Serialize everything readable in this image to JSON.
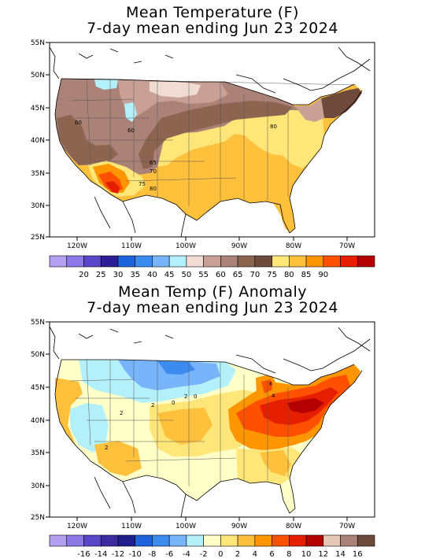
{
  "map1": {
    "title_line1": "Mean Temperature (F)",
    "title_line2": "7-day mean ending Jun 23 2024",
    "lat_labels": [
      "55N",
      "50N",
      "45N",
      "40N",
      "35N",
      "30N",
      "25N"
    ],
    "lon_labels": [
      "120W",
      "110W",
      "100W",
      "90W",
      "80W",
      "70W"
    ],
    "colorbar_values": [
      "20",
      "25",
      "30",
      "35",
      "40",
      "45",
      "50",
      "55",
      "60",
      "65",
      "70",
      "75",
      "80",
      "85",
      "90"
    ],
    "colorbar_colors": [
      "#b4a0f0",
      "#8c78e6",
      "#5a46c8",
      "#2d1e96",
      "#1e64dc",
      "#3c8cf0",
      "#78b4fa",
      "#b4f0fa",
      "#f0dcd2",
      "#c8a096",
      "#aa8278",
      "#8c6450",
      "#6e4a3c",
      "#ffe678",
      "#ffc03c",
      "#ff9600",
      "#ff5000",
      "#e61e00",
      "#b40000"
    ],
    "contour_labels": [
      "60",
      "60",
      "65",
      "70",
      "75",
      "80",
      "80"
    ],
    "projection": "Lambert conformal, CONUS"
  },
  "map2": {
    "title_line1": "Mean Temp (F) Anomaly",
    "title_line2": "7-day mean ending Jun 23 2024",
    "lat_labels": [
      "55N",
      "50N",
      "45N",
      "40N",
      "35N",
      "30N",
      "25N"
    ],
    "lon_labels": [
      "120W",
      "110W",
      "100W",
      "90W",
      "80W",
      "70W"
    ],
    "colorbar_values": [
      "-16",
      "-14",
      "-12",
      "-10",
      "-8",
      "-6",
      "-4",
      "-2",
      "0",
      "2",
      "4",
      "6",
      "8",
      "10",
      "12",
      "14",
      "16"
    ],
    "colorbar_colors": [
      "#b4a0f0",
      "#8c78e6",
      "#5a46c8",
      "#3c2ca0",
      "#1e1e8c",
      "#1e64dc",
      "#3c8cf0",
      "#78b4fa",
      "#b4f0fa",
      "#ffffc8",
      "#ffe678",
      "#ffc03c",
      "#ff9600",
      "#ff5000",
      "#e61e00",
      "#b40000",
      "#e6c8b4",
      "#aa8278",
      "#6e4a3c"
    ],
    "contour_labels": [
      "2",
      "2",
      "2",
      "0",
      "2",
      "0",
      "6",
      "4"
    ]
  }
}
